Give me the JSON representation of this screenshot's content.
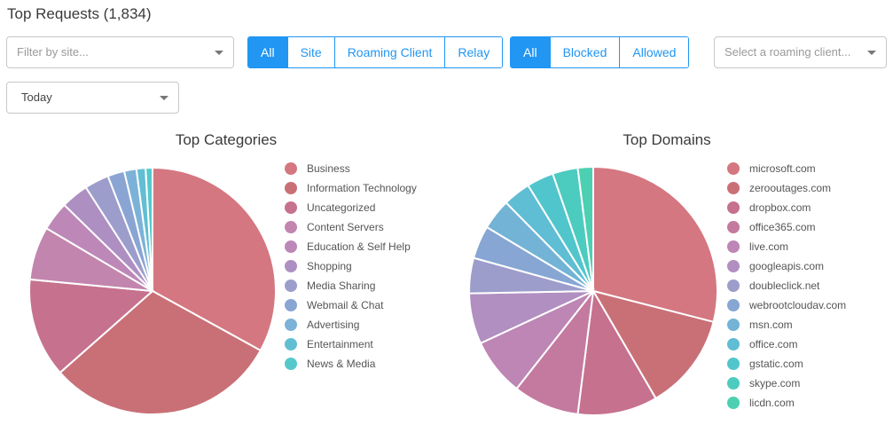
{
  "page": {
    "title": "Top Requests (1,834)"
  },
  "filters": {
    "site_placeholder": "Filter by site...",
    "source_buttons": [
      {
        "label": "All",
        "active": true
      },
      {
        "label": "Site",
        "active": false
      },
      {
        "label": "Roaming Client",
        "active": false
      },
      {
        "label": "Relay",
        "active": false
      }
    ],
    "status_buttons": [
      {
        "label": "All",
        "active": true
      },
      {
        "label": "Blocked",
        "active": false
      },
      {
        "label": "Allowed",
        "active": false
      }
    ],
    "roaming_placeholder": "Select a roaming client...",
    "period_value": "Today"
  },
  "accent_color": "#2196f3",
  "chart_data": [
    {
      "type": "pie",
      "title": "Top Categories",
      "legend_placement": "right",
      "slices": [
        {
          "label": "Business",
          "value": 33.0,
          "color": "#d47780"
        },
        {
          "label": "Information Technology",
          "value": 30.5,
          "color": "#c97077"
        },
        {
          "label": "Uncategorized",
          "value": 13.0,
          "color": "#c6718e"
        },
        {
          "label": "Content Servers",
          "value": 7.0,
          "color": "#c285ad"
        },
        {
          "label": "Education & Self Help",
          "value": 3.8,
          "color": "#bd88b8"
        },
        {
          "label": "Shopping",
          "value": 3.6,
          "color": "#ae8fc2"
        },
        {
          "label": "Media Sharing",
          "value": 3.2,
          "color": "#9c9dcb"
        },
        {
          "label": "Webmail & Chat",
          "value": 2.2,
          "color": "#8aa5d4"
        },
        {
          "label": "Advertising",
          "value": 1.6,
          "color": "#7db2d8"
        },
        {
          "label": "Entertainment",
          "value": 1.2,
          "color": "#62bed3"
        },
        {
          "label": "News & Media",
          "value": 0.9,
          "color": "#55c8cb"
        }
      ]
    },
    {
      "type": "pie",
      "title": "Top Domains",
      "legend_placement": "right",
      "slices": [
        {
          "label": "microsoft.com",
          "value": 29.0,
          "color": "#d47780"
        },
        {
          "label": "zerooutages.com",
          "value": 12.6,
          "color": "#c97077"
        },
        {
          "label": "dropbox.com",
          "value": 10.4,
          "color": "#c6718e"
        },
        {
          "label": "office365.com",
          "value": 8.6,
          "color": "#c47a9e"
        },
        {
          "label": "live.com",
          "value": 7.5,
          "color": "#bd86b4"
        },
        {
          "label": "googleapis.com",
          "value": 6.6,
          "color": "#b18fc1"
        },
        {
          "label": "doubleclick.net",
          "value": 4.6,
          "color": "#9c9dcb"
        },
        {
          "label": "webrootcloudav.com",
          "value": 4.3,
          "color": "#87a6d4"
        },
        {
          "label": "msn.com",
          "value": 4.0,
          "color": "#72b3d6"
        },
        {
          "label": "office.com",
          "value": 3.6,
          "color": "#5fbdd4"
        },
        {
          "label": "gstatic.com",
          "value": 3.5,
          "color": "#50c6cc"
        },
        {
          "label": "skype.com",
          "value": 3.3,
          "color": "#4ccbbf"
        },
        {
          "label": "licdn.com",
          "value": 2.0,
          "color": "#4dd0b2"
        }
      ]
    }
  ]
}
